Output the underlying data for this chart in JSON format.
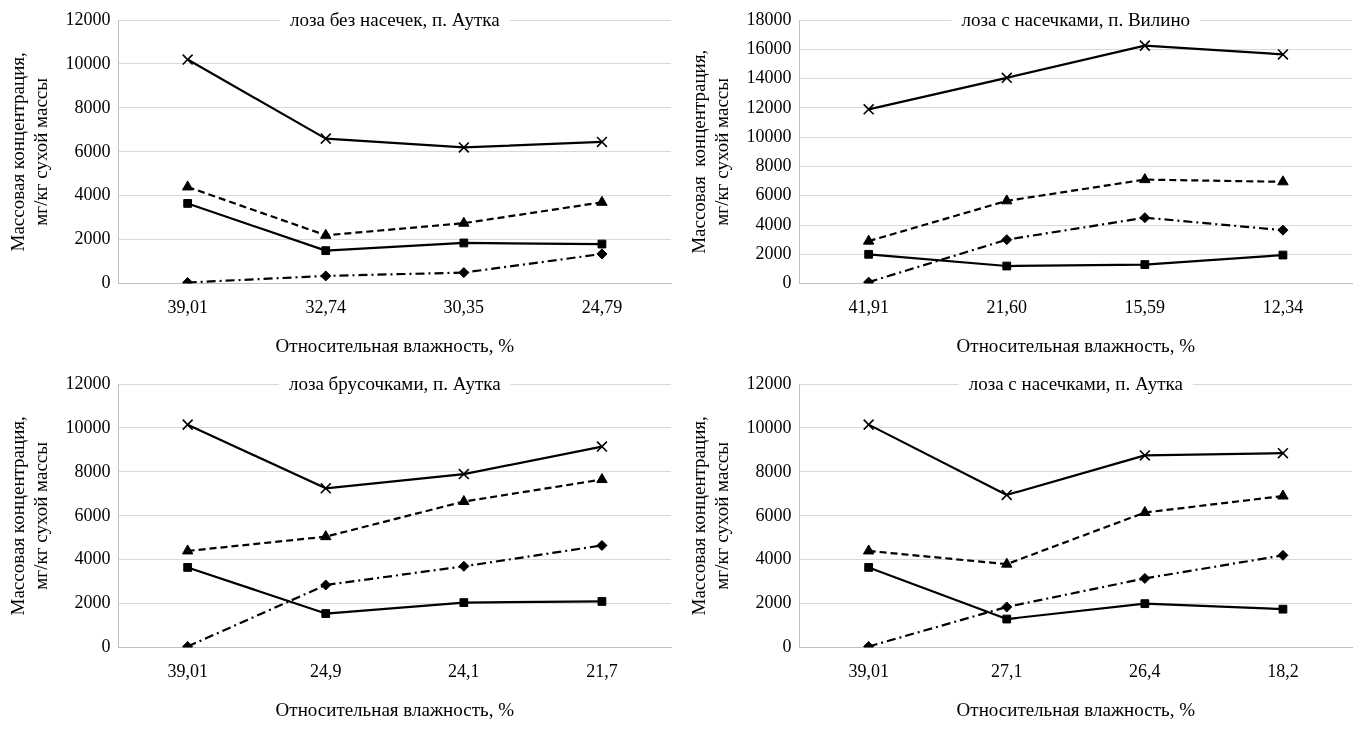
{
  "chart_data": [
    {
      "type": "line",
      "title": "лоза без насечек, п. Аутка",
      "xlabel": "Относительная влажность, %",
      "ylabel": "Массовая концентрация,\nмг/кг сухой массы",
      "categories": [
        "39,01",
        "32,74",
        "30,35",
        "24,79"
      ],
      "ylim": [
        0,
        12000
      ],
      "yticks": [
        0,
        2000,
        4000,
        6000,
        8000,
        10000,
        12000
      ],
      "grid": "y",
      "legend": false,
      "series": [
        {
          "color": "#000000",
          "marker": "square",
          "line_style": "solid",
          "values": [
            3650,
            1500,
            1850,
            1800
          ]
        },
        {
          "color": "#000000",
          "marker": "triangle",
          "line_style": "dashed",
          "values": [
            4400,
            2200,
            2750,
            3700
          ]
        },
        {
          "color": "#000000",
          "marker": "diamond",
          "line_style": "dashdot",
          "values": [
            50,
            350,
            500,
            1350
          ]
        },
        {
          "color": "#000000",
          "marker": "cross",
          "line_style": "solid",
          "values": [
            10200,
            6600,
            6200,
            6450
          ]
        }
      ]
    },
    {
      "type": "line",
      "title": "лоза с насечками, п. Вилино",
      "xlabel": "Относительная влажность, %",
      "ylabel": "Массовая  концентрация,\nмг/кг сухой массы",
      "categories": [
        "41,91",
        "21,60",
        "15,59",
        "12,34"
      ],
      "ylim": [
        0,
        18000
      ],
      "yticks": [
        0,
        2000,
        4000,
        6000,
        8000,
        10000,
        12000,
        14000,
        16000,
        18000
      ],
      "grid": "y",
      "legend": false,
      "series": [
        {
          "color": "#000000",
          "marker": "square",
          "line_style": "solid",
          "values": [
            2000,
            1200,
            1300,
            1950
          ]
        },
        {
          "color": "#000000",
          "marker": "triangle",
          "line_style": "dashed",
          "values": [
            2900,
            5650,
            7100,
            6950
          ]
        },
        {
          "color": "#000000",
          "marker": "diamond",
          "line_style": "dashdot",
          "values": [
            100,
            3000,
            4500,
            3650
          ]
        },
        {
          "color": "#000000",
          "marker": "cross",
          "line_style": "solid",
          "values": [
            11900,
            14050,
            16250,
            15650
          ]
        }
      ]
    },
    {
      "type": "line",
      "title": "лоза брусочками, п. Аутка",
      "xlabel": "Относительная влажность, %",
      "ylabel": "Массовая концентрация,\nмг/кг сухой массы",
      "categories": [
        "39,01",
        "24,9",
        "24,1",
        "21,7"
      ],
      "ylim": [
        0,
        12000
      ],
      "yticks": [
        0,
        2000,
        4000,
        6000,
        8000,
        10000,
        12000
      ],
      "grid": "y",
      "legend": false,
      "series": [
        {
          "color": "#000000",
          "marker": "square",
          "line_style": "solid",
          "values": [
            3650,
            1550,
            2050,
            2100
          ]
        },
        {
          "color": "#000000",
          "marker": "triangle",
          "line_style": "dashed",
          "values": [
            4400,
            5050,
            6650,
            7650
          ]
        },
        {
          "color": "#000000",
          "marker": "diamond",
          "line_style": "dashdot",
          "values": [
            50,
            2850,
            3700,
            4650
          ]
        },
        {
          "color": "#000000",
          "marker": "cross",
          "line_style": "solid",
          "values": [
            10150,
            7250,
            7900,
            9150
          ]
        }
      ]
    },
    {
      "type": "line",
      "title": "лоза с насечками, п. Аутка",
      "xlabel": "Относительная влажность, %",
      "ylabel": "Массовая концентрация,\nмг/кг сухой массы",
      "categories": [
        "39,01",
        "27,1",
        "26,4",
        "18,2"
      ],
      "ylim": [
        0,
        12000
      ],
      "yticks": [
        0,
        2000,
        4000,
        6000,
        8000,
        10000,
        12000
      ],
      "grid": "y",
      "legend": false,
      "series": [
        {
          "color": "#000000",
          "marker": "square",
          "line_style": "solid",
          "values": [
            3650,
            1300,
            2000,
            1750
          ]
        },
        {
          "color": "#000000",
          "marker": "triangle",
          "line_style": "dashed",
          "values": [
            4400,
            3800,
            6150,
            6900
          ]
        },
        {
          "color": "#000000",
          "marker": "diamond",
          "line_style": "dashdot",
          "values": [
            50,
            1850,
            3150,
            4200
          ]
        },
        {
          "color": "#000000",
          "marker": "cross",
          "line_style": "solid",
          "values": [
            10150,
            6950,
            8750,
            8850
          ]
        }
      ]
    }
  ]
}
